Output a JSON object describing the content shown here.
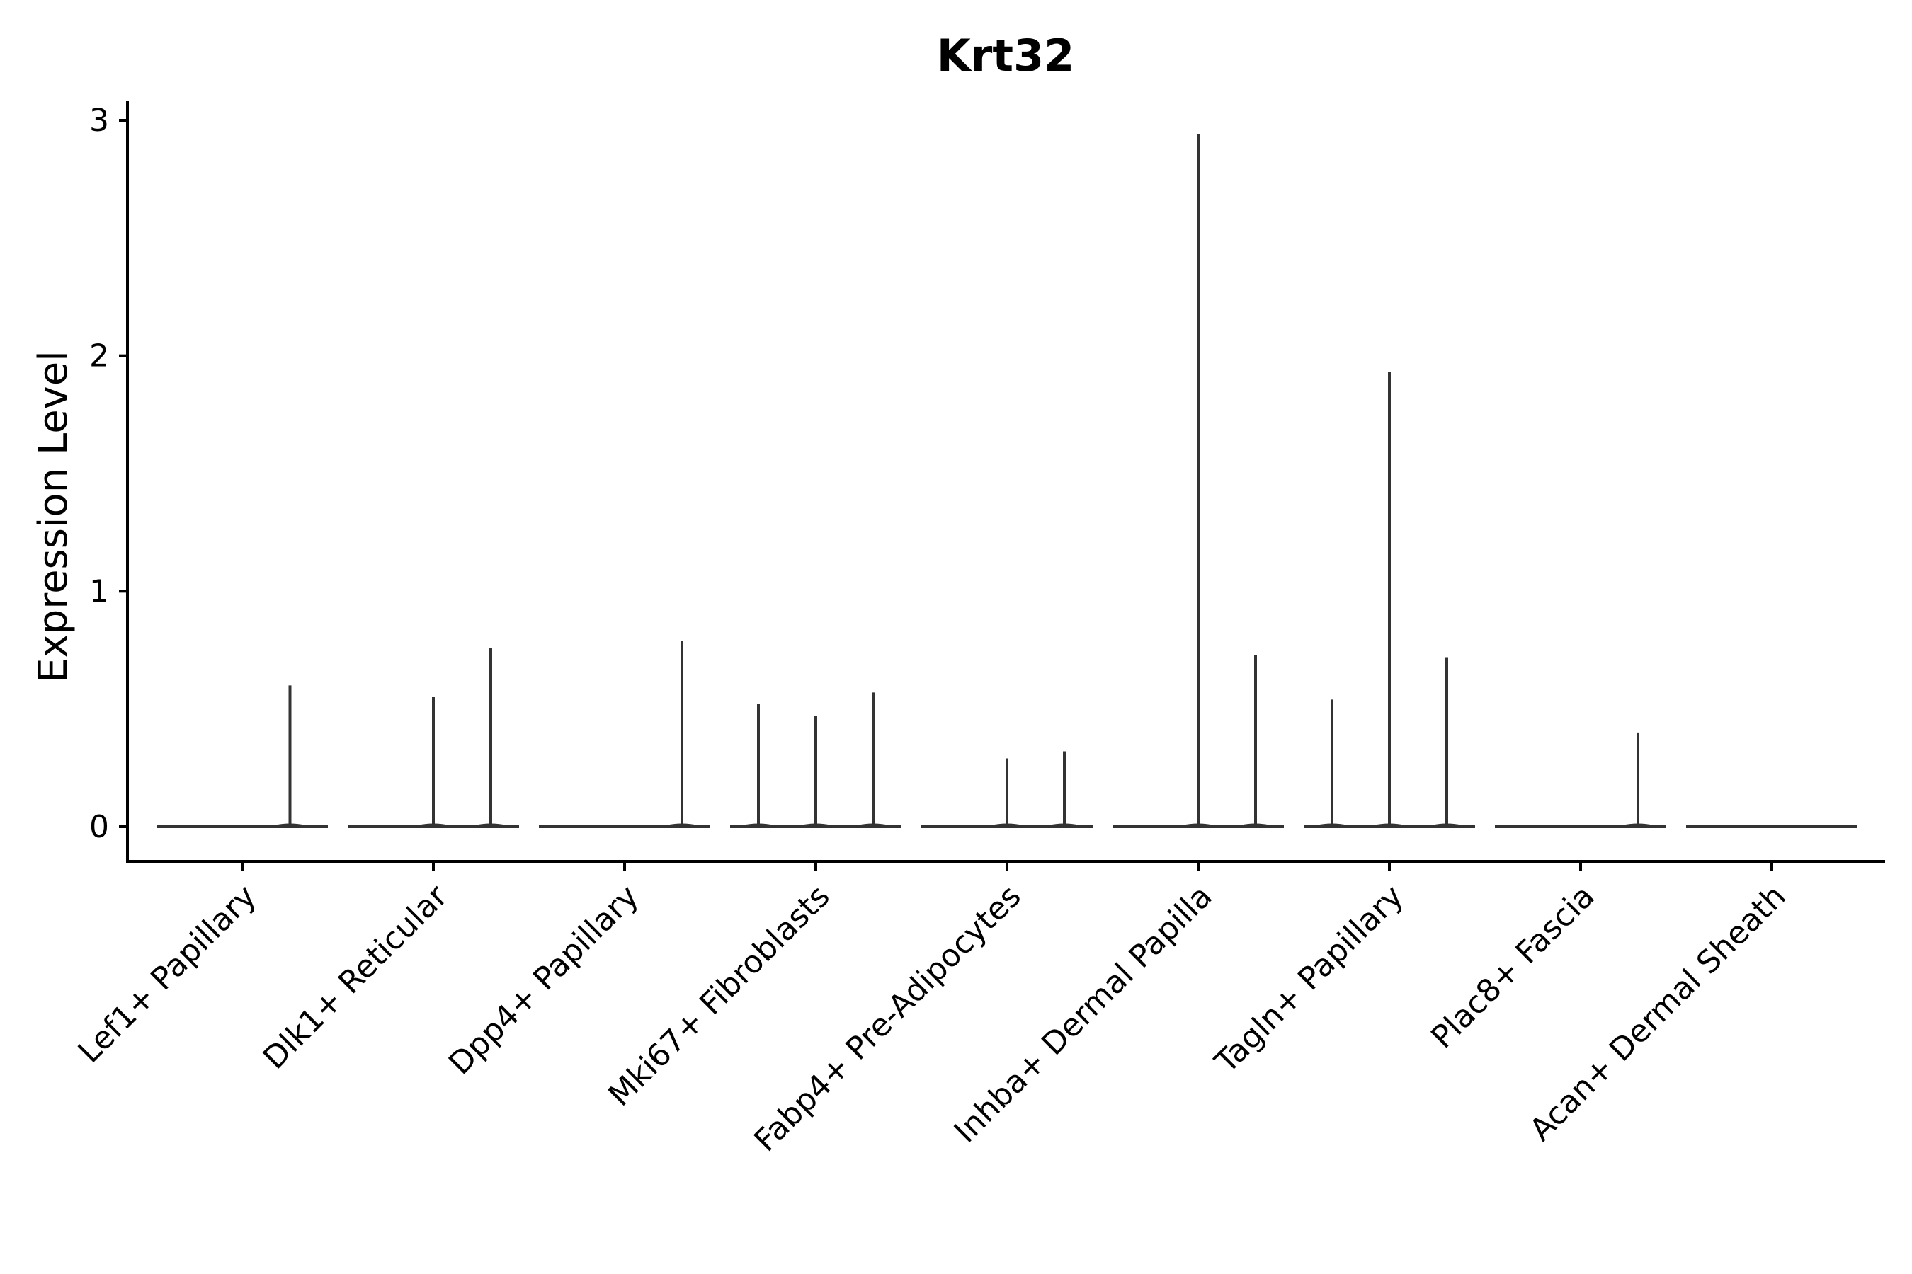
{
  "chart_data": {
    "type": "violin",
    "title": "Krt32",
    "xlabel": "",
    "ylabel": "Expression Level",
    "ylim": [
      -0.15,
      3.08
    ],
    "yticks": [
      0,
      1,
      2,
      3
    ],
    "grid": false,
    "legend": "none",
    "categories": [
      "Lef1+ Papillary",
      "Dlk1+ Reticular",
      "Dpp4+ Papillary",
      "Mki67+ Fibroblasts",
      "Fabp4+ Pre-Adipocytes",
      "Inhba+ Dermal Papilla",
      "Tagln+ Papillary",
      "Plac8+ Fascia",
      "Acan+ Dermal Sheath"
    ],
    "series": [
      {
        "name": "Lef1+ Papillary",
        "spikes": [
          {
            "pos": 0.25,
            "value": 0.6
          }
        ]
      },
      {
        "name": "Dlk1+ Reticular",
        "spikes": [
          {
            "pos": 0.0,
            "value": 0.55
          },
          {
            "pos": 0.3,
            "value": 0.76
          }
        ]
      },
      {
        "name": "Dpp4+ Papillary",
        "spikes": [
          {
            "pos": 0.3,
            "value": 0.79
          }
        ]
      },
      {
        "name": "Mki67+ Fibroblasts",
        "spikes": [
          {
            "pos": -0.3,
            "value": 0.52
          },
          {
            "pos": 0.0,
            "value": 0.47
          },
          {
            "pos": 0.3,
            "value": 0.57
          }
        ]
      },
      {
        "name": "Fabp4+ Pre-Adipocytes",
        "spikes": [
          {
            "pos": 0.0,
            "value": 0.29
          },
          {
            "pos": 0.3,
            "value": 0.32
          }
        ]
      },
      {
        "name": "Inhba+ Dermal Papilla",
        "spikes": [
          {
            "pos": 0.0,
            "value": 2.94
          },
          {
            "pos": 0.3,
            "value": 0.73
          }
        ]
      },
      {
        "name": "Tagln+ Papillary",
        "spikes": [
          {
            "pos": -0.3,
            "value": 0.54
          },
          {
            "pos": 0.0,
            "value": 1.93
          },
          {
            "pos": 0.3,
            "value": 0.72
          }
        ]
      },
      {
        "name": "Plac8+ Fascia",
        "spikes": [
          {
            "pos": 0.3,
            "value": 0.4
          }
        ]
      },
      {
        "name": "Acan+ Dermal Sheath",
        "spikes": []
      }
    ]
  }
}
